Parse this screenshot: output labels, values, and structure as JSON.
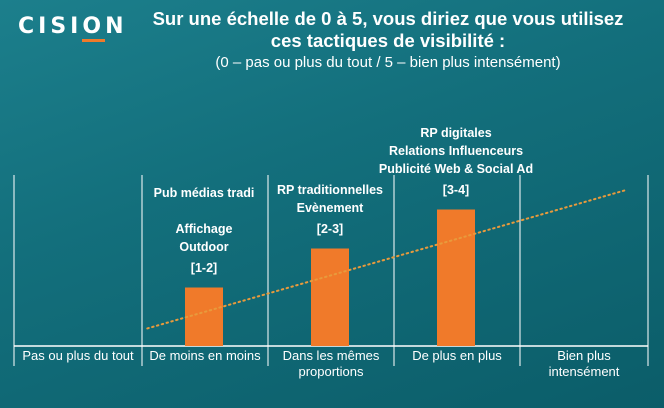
{
  "brand": "CISION",
  "title_line1": "Sur une échelle de 0 à 5, vous diriez que vous utilisez",
  "title_line2": "ces tactiques de visibilité :",
  "subtitle": "(0 – pas ou plus du tout / 5 – bien plus intensément)",
  "chart_data": {
    "type": "bar",
    "categories": [
      "Pas ou plus du tout",
      "De moins en moins",
      "Dans les mêmes proportions",
      "De plus en plus",
      "Bien plus intensément"
    ],
    "category_lines": [
      [
        "Pas ou plus du tout"
      ],
      [
        "De moins en moins"
      ],
      [
        "Dans les mêmes",
        "proportions"
      ],
      [
        "De plus en plus"
      ],
      [
        "Bien plus",
        "intensément"
      ]
    ],
    "values": [
      0,
      1.5,
      2.5,
      3.5,
      0
    ],
    "range_labels": [
      "",
      "[1-2]",
      "[2-3]",
      "[3-4]",
      ""
    ],
    "tactics": [
      [],
      [
        "Pub médias tradi",
        "",
        "Affichage",
        "Outdoor"
      ],
      [
        "RP traditionnelles",
        "Evènement"
      ],
      [
        "RP digitales",
        "Relations Influenceurs",
        "Publicité Web & Social Ad"
      ],
      []
    ],
    "trendline": {
      "from": [
        0.55,
        0.45
      ],
      "to": [
        4.35,
        4.0
      ],
      "style": "dotted"
    },
    "ylim": [
      0,
      5
    ],
    "colors": {
      "bar": "#f07a2a",
      "trend": "#e89a3c",
      "axis": "#ffffff"
    }
  }
}
